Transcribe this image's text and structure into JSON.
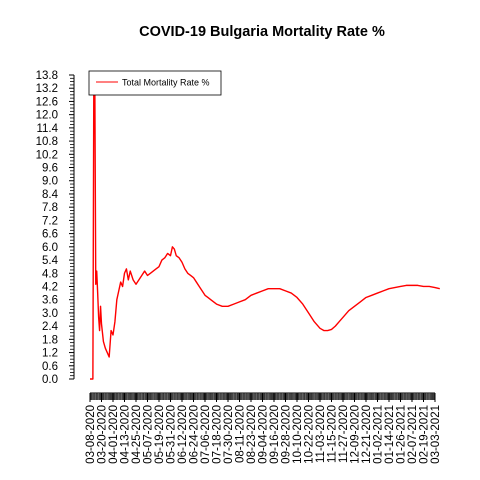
{
  "chart_data": {
    "type": "line",
    "title": "COVID-19 Bulgaria Mortality Rate %",
    "xlabel": "",
    "ylabel": "",
    "ylim": [
      0,
      13.8
    ],
    "y_ticks": [
      "0.0",
      "0.6",
      "1.2",
      "1.8",
      "2.4",
      "3.0",
      "3.6",
      "4.2",
      "4.8",
      "5.4",
      "6.0",
      "6.6",
      "7.2",
      "7.8",
      "8.4",
      "9.0",
      "9.6",
      "10.2",
      "10.8",
      "11.4",
      "12.0",
      "12.6",
      "13.2",
      "13.8"
    ],
    "x_ticks": [
      "03-08-2020",
      "03-20-2020",
      "04-01-2020",
      "04-13-2020",
      "04-25-2020",
      "05-07-2020",
      "05-19-2020",
      "05-31-2020",
      "06-12-2020",
      "06-24-2020",
      "07-06-2020",
      "07-18-2020",
      "07-30-2020",
      "08-11-2020",
      "08-23-2020",
      "09-04-2020",
      "09-16-2020",
      "09-28-2020",
      "10-10-2020",
      "10-22-2020",
      "11-03-2020",
      "11-15-2020",
      "11-27-2020",
      "12-09-2020",
      "12-21-2020",
      "01-02-2021",
      "01-14-2021",
      "01-26-2021",
      "02-07-2021",
      "02-19-2021",
      "03-03-2021"
    ],
    "legend": {
      "placement": "top-left",
      "entries": [
        "Total Mortality Rate %"
      ]
    },
    "grid": false,
    "series": [
      {
        "name": "Total Mortality Rate %",
        "color": "#ff0000",
        "x": [
          "03-08-2020",
          "03-10-2020",
          "03-11-2020",
          "03-12-2020",
          "03-13-2020",
          "03-14-2020",
          "03-15-2020",
          "03-16-2020",
          "03-17-2020",
          "03-18-2020",
          "03-19-2020",
          "03-20-2020",
          "03-21-2020",
          "03-22-2020",
          "03-24-2020",
          "03-26-2020",
          "03-28-2020",
          "03-30-2020",
          "04-01-2020",
          "04-03-2020",
          "04-05-2020",
          "04-07-2020",
          "04-09-2020",
          "04-11-2020",
          "04-13-2020",
          "04-15-2020",
          "04-17-2020",
          "04-19-2020",
          "04-22-2020",
          "04-25-2020",
          "04-28-2020",
          "05-01-2020",
          "05-04-2020",
          "05-07-2020",
          "05-10-2020",
          "05-13-2020",
          "05-16-2020",
          "05-19-2020",
          "05-22-2020",
          "05-25-2020",
          "05-28-2020",
          "05-31-2020",
          "06-02-2020",
          "06-04-2020",
          "06-06-2020",
          "06-09-2020",
          "06-12-2020",
          "06-15-2020",
          "06-18-2020",
          "06-21-2020",
          "06-24-2020",
          "06-27-2020",
          "06-30-2020",
          "07-03-2020",
          "07-06-2020",
          "07-09-2020",
          "07-12-2020",
          "07-18-2020",
          "07-24-2020",
          "07-30-2020",
          "08-05-2020",
          "08-11-2020",
          "08-17-2020",
          "08-23-2020",
          "08-29-2020",
          "09-04-2020",
          "09-10-2020",
          "09-16-2020",
          "09-22-2020",
          "09-28-2020",
          "10-04-2020",
          "10-10-2020",
          "10-16-2020",
          "10-22-2020",
          "10-28-2020",
          "11-03-2020",
          "11-07-2020",
          "11-11-2020",
          "11-15-2020",
          "11-19-2020",
          "11-23-2020",
          "11-27-2020",
          "12-03-2020",
          "12-09-2020",
          "12-15-2020",
          "12-21-2020",
          "12-27-2020",
          "01-02-2021",
          "01-08-2021",
          "01-14-2021",
          "01-20-2021",
          "01-26-2021",
          "02-01-2021",
          "02-07-2021",
          "02-13-2021",
          "02-19-2021",
          "02-25-2021",
          "03-03-2021",
          "03-08-2021"
        ],
        "values": [
          0.0,
          0.0,
          0.0,
          13.8,
          13.8,
          4.3,
          4.9,
          3.9,
          2.8,
          2.2,
          3.3,
          2.5,
          2.1,
          1.7,
          1.4,
          1.2,
          1.0,
          2.2,
          2.0,
          2.6,
          3.6,
          4.0,
          4.4,
          4.2,
          4.8,
          5.0,
          4.5,
          4.9,
          4.5,
          4.3,
          4.5,
          4.7,
          4.9,
          4.7,
          4.8,
          4.9,
          5.0,
          5.1,
          5.4,
          5.5,
          5.7,
          5.6,
          6.0,
          5.9,
          5.6,
          5.5,
          5.3,
          5.0,
          4.8,
          4.7,
          4.6,
          4.4,
          4.2,
          4.0,
          3.8,
          3.7,
          3.6,
          3.4,
          3.3,
          3.3,
          3.4,
          3.5,
          3.6,
          3.8,
          3.9,
          4.0,
          4.1,
          4.1,
          4.1,
          4.0,
          3.9,
          3.7,
          3.4,
          3.0,
          2.6,
          2.3,
          2.2,
          2.2,
          2.25,
          2.4,
          2.6,
          2.8,
          3.1,
          3.3,
          3.5,
          3.7,
          3.8,
          3.9,
          4.0,
          4.1,
          4.15,
          4.2,
          4.25,
          4.25,
          4.25,
          4.2,
          4.2,
          4.15,
          4.1
        ]
      }
    ]
  }
}
